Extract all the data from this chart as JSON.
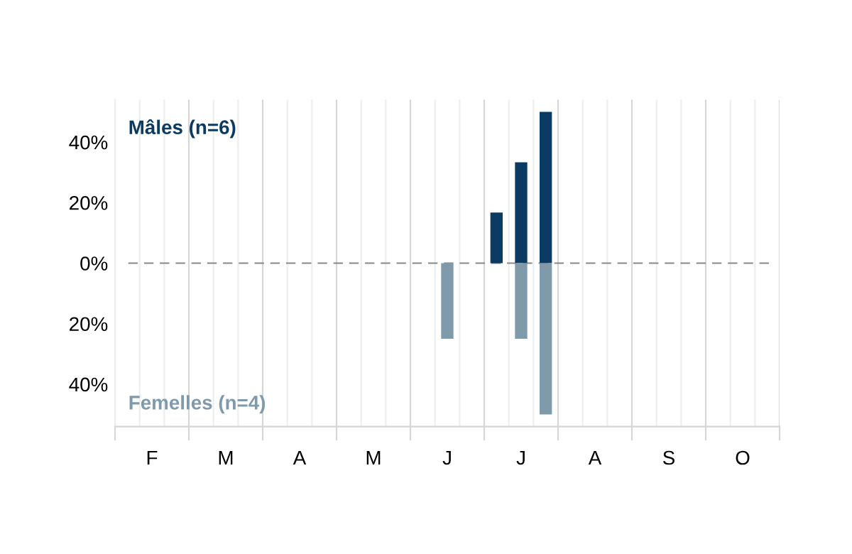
{
  "chart_data": {
    "type": "bar",
    "categories": [
      null,
      "F",
      null,
      null,
      "M",
      null,
      null,
      "A",
      null,
      null,
      "M",
      null,
      null,
      "J",
      null,
      null,
      "J",
      null,
      null,
      "A",
      null,
      null,
      "S",
      null,
      null,
      "O",
      null
    ],
    "series": [
      {
        "name": "Mâles (n=6)",
        "color": "#0b3a63",
        "values": [
          null,
          null,
          null,
          null,
          null,
          null,
          null,
          null,
          null,
          null,
          null,
          null,
          null,
          null,
          null,
          16.7,
          33.3,
          50,
          null,
          null,
          null,
          null,
          null,
          null,
          null,
          null,
          null
        ]
      },
      {
        "name": "Femelles (n=4)",
        "color": "#7f9aab",
        "values": [
          null,
          null,
          null,
          null,
          null,
          null,
          null,
          null,
          null,
          null,
          null,
          null,
          null,
          -25,
          null,
          null,
          -25,
          -50,
          null,
          null,
          null,
          null,
          null,
          null,
          null,
          null,
          null
        ]
      }
    ],
    "ylim": [
      -54,
      54
    ],
    "yticks": [
      {
        "value": -40,
        "label": "40%"
      },
      {
        "value": -20,
        "label": "20%"
      },
      {
        "value": 0,
        "label": "0%"
      },
      {
        "value": 20,
        "label": "20%"
      },
      {
        "value": 40,
        "label": "40%"
      }
    ],
    "ref_lines": [
      {
        "axis": "y",
        "value": 0,
        "color": "#888888",
        "line_style": "dashed"
      }
    ],
    "grid": "x",
    "legend": false
  }
}
